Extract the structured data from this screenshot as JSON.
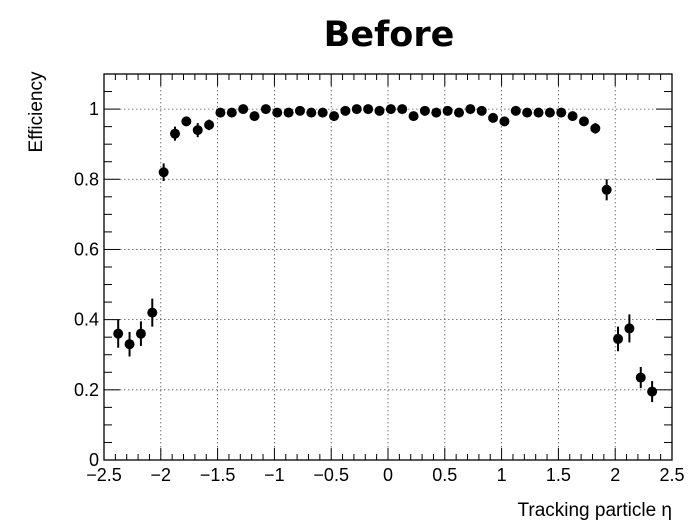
{
  "chart_data": {
    "type": "scatter",
    "title": "Before",
    "xlabel": "Tracking particle η",
    "ylabel": "Efficiency",
    "xlim": [
      -2.5,
      2.5
    ],
    "ylim": [
      0,
      1.1
    ],
    "grid": true,
    "x_ticks": [
      "−2.5",
      "−2",
      "−1.5",
      "−1",
      "−0.5",
      "0",
      "0.5",
      "1",
      "1.5",
      "2",
      "2.5"
    ],
    "y_ticks": [
      "0",
      "0.2",
      "0.4",
      "0.6",
      "0.8",
      "1"
    ],
    "x_tick_values": [
      -2.5,
      -2,
      -1.5,
      -1,
      -0.5,
      0,
      0.5,
      1,
      1.5,
      2,
      2.5
    ],
    "y_tick_values": [
      0,
      0.2,
      0.4,
      0.6,
      0.8,
      1
    ],
    "marker_color": "#000000",
    "series": [
      {
        "points": [
          {
            "x": -2.375,
            "y": 0.36,
            "err": 0.04
          },
          {
            "x": -2.275,
            "y": 0.33,
            "err": 0.035
          },
          {
            "x": -2.175,
            "y": 0.36,
            "err": 0.035
          },
          {
            "x": -2.075,
            "y": 0.42,
            "err": 0.04
          },
          {
            "x": -1.975,
            "y": 0.82,
            "err": 0.025
          },
          {
            "x": -1.875,
            "y": 0.93,
            "err": 0.02
          },
          {
            "x": -1.775,
            "y": 0.965,
            "err": 0.012
          },
          {
            "x": -1.675,
            "y": 0.94,
            "err": 0.02
          },
          {
            "x": -1.575,
            "y": 0.955,
            "err": 0.015
          },
          {
            "x": -1.475,
            "y": 0.99,
            "err": 0.008
          },
          {
            "x": -1.375,
            "y": 0.99,
            "err": 0.008
          },
          {
            "x": -1.275,
            "y": 1.0,
            "err": 0.006
          },
          {
            "x": -1.175,
            "y": 0.98,
            "err": 0.008
          },
          {
            "x": -1.075,
            "y": 1.0,
            "err": 0.006
          },
          {
            "x": -0.975,
            "y": 0.99,
            "err": 0.006
          },
          {
            "x": -0.875,
            "y": 0.99,
            "err": 0.006
          },
          {
            "x": -0.775,
            "y": 0.995,
            "err": 0.005
          },
          {
            "x": -0.675,
            "y": 0.99,
            "err": 0.006
          },
          {
            "x": -0.575,
            "y": 0.99,
            "err": 0.006
          },
          {
            "x": -0.475,
            "y": 0.98,
            "err": 0.008
          },
          {
            "x": -0.375,
            "y": 0.995,
            "err": 0.005
          },
          {
            "x": -0.275,
            "y": 1.0,
            "err": 0.005
          },
          {
            "x": -0.175,
            "y": 1.0,
            "err": 0.005
          },
          {
            "x": -0.075,
            "y": 0.995,
            "err": 0.005
          },
          {
            "x": 0.025,
            "y": 1.0,
            "err": 0.005
          },
          {
            "x": 0.125,
            "y": 1.0,
            "err": 0.005
          },
          {
            "x": 0.225,
            "y": 0.98,
            "err": 0.008
          },
          {
            "x": 0.325,
            "y": 0.995,
            "err": 0.005
          },
          {
            "x": 0.425,
            "y": 0.99,
            "err": 0.006
          },
          {
            "x": 0.525,
            "y": 0.995,
            "err": 0.005
          },
          {
            "x": 0.625,
            "y": 0.99,
            "err": 0.006
          },
          {
            "x": 0.725,
            "y": 1.0,
            "err": 0.005
          },
          {
            "x": 0.825,
            "y": 0.995,
            "err": 0.005
          },
          {
            "x": 0.925,
            "y": 0.975,
            "err": 0.01
          },
          {
            "x": 1.025,
            "y": 0.965,
            "err": 0.01
          },
          {
            "x": 1.125,
            "y": 0.995,
            "err": 0.005
          },
          {
            "x": 1.225,
            "y": 0.99,
            "err": 0.006
          },
          {
            "x": 1.325,
            "y": 0.99,
            "err": 0.006
          },
          {
            "x": 1.425,
            "y": 0.99,
            "err": 0.006
          },
          {
            "x": 1.525,
            "y": 0.99,
            "err": 0.006
          },
          {
            "x": 1.625,
            "y": 0.98,
            "err": 0.008
          },
          {
            "x": 1.725,
            "y": 0.965,
            "err": 0.01
          },
          {
            "x": 1.825,
            "y": 0.945,
            "err": 0.015
          },
          {
            "x": 1.925,
            "y": 0.77,
            "err": 0.03
          },
          {
            "x": 2.025,
            "y": 0.345,
            "err": 0.035
          },
          {
            "x": 2.125,
            "y": 0.375,
            "err": 0.04
          },
          {
            "x": 2.225,
            "y": 0.235,
            "err": 0.03
          },
          {
            "x": 2.325,
            "y": 0.195,
            "err": 0.03
          }
        ]
      }
    ]
  }
}
